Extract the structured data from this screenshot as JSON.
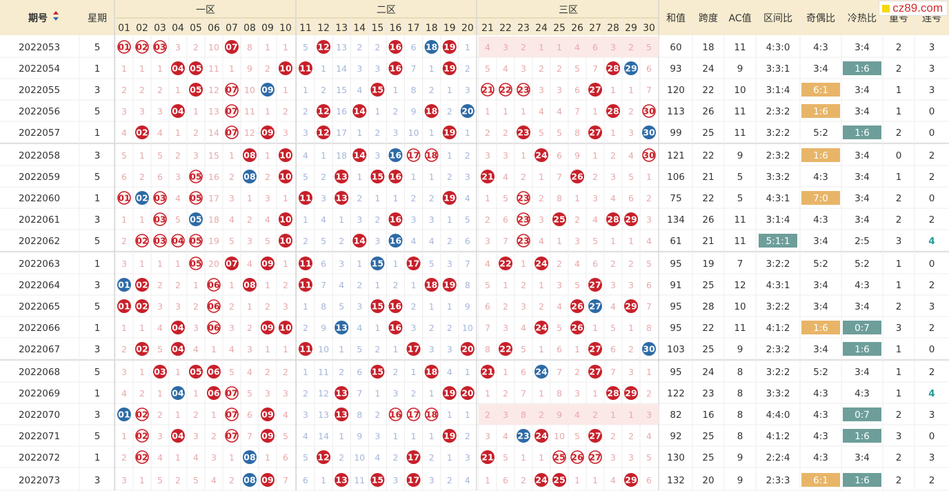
{
  "header": {
    "period": "期号",
    "weekday": "星期",
    "zones": [
      "一区",
      "二区",
      "三区"
    ],
    "stats": [
      "和值",
      "跨度",
      "AC值",
      "区间比",
      "奇偶比",
      "冷热比",
      "重号",
      "连号"
    ]
  },
  "watermark": "cz89.com",
  "colors": {
    "red": "#c8202a",
    "blue": "#2d6aa6",
    "header_bg": "#f7ecd0",
    "oddeven_bg": "#e8b568",
    "hotcold_bg": "#6d9e9a"
  },
  "chart_data": {
    "type": "table",
    "numbers": [
      "01",
      "02",
      "03",
      "04",
      "05",
      "06",
      "07",
      "08",
      "09",
      "10",
      "11",
      "12",
      "13",
      "14",
      "15",
      "16",
      "17",
      "18",
      "19",
      "20",
      "21",
      "22",
      "23",
      "24",
      "25",
      "26",
      "27",
      "28",
      "29",
      "30"
    ],
    "rows": [
      {
        "period": "2022053",
        "weekday": "5",
        "miss": [
          0,
          0,
          0,
          3,
          2,
          10,
          0,
          8,
          1,
          1,
          5,
          0,
          13,
          2,
          2,
          0,
          6,
          0,
          0,
          1,
          4,
          3,
          2,
          1,
          1,
          4,
          6,
          3,
          2,
          5
        ],
        "balls": {
          "1": "ro",
          "2": "ro",
          "3": "ro",
          "7": "r",
          "12": "r",
          "16": "r",
          "18": "b",
          "19": "r"
        },
        "sum": "60",
        "span": "18",
        "ac": "11",
        "zone_ratio": "4:3:0",
        "odd_even": "4:3",
        "hot_cold": "3:4",
        "repeat": "2",
        "consec": "3"
      },
      {
        "period": "2022054",
        "weekday": "1",
        "miss": [
          1,
          1,
          1,
          0,
          0,
          11,
          1,
          9,
          2,
          0,
          0,
          1,
          14,
          3,
          3,
          0,
          7,
          1,
          0,
          2,
          5,
          4,
          3,
          2,
          2,
          5,
          7,
          0,
          0,
          6
        ],
        "balls": {
          "4": "r",
          "5": "r",
          "10": "r",
          "11": "r",
          "16": "r",
          "19": "r",
          "28": "r",
          "29": "b"
        },
        "sum": "93",
        "span": "24",
        "ac": "9",
        "zone_ratio": "3:3:1",
        "odd_even": "3:4",
        "hot_cold": "1:6",
        "repeat": "2",
        "consec": "3"
      },
      {
        "period": "2022055",
        "weekday": "3",
        "miss": [
          2,
          2,
          2,
          1,
          0,
          12,
          0,
          10,
          0,
          1,
          1,
          2,
          15,
          4,
          0,
          1,
          8,
          2,
          1,
          3,
          0,
          0,
          0,
          3,
          3,
          6,
          0,
          1,
          1,
          7
        ],
        "balls": {
          "5": "r",
          "7": "ro",
          "9": "b",
          "15": "r",
          "21": "ro",
          "22": "ro",
          "23": "ro",
          "27": "r"
        },
        "sum": "120",
        "span": "22",
        "ac": "10",
        "zone_ratio": "3:1:4",
        "odd_even": "6:1",
        "hot_cold": "3:4",
        "repeat": "1",
        "consec": "3"
      },
      {
        "period": "2022056",
        "weekday": "5",
        "miss": [
          3,
          3,
          3,
          0,
          1,
          13,
          0,
          11,
          1,
          2,
          2,
          0,
          16,
          0,
          1,
          2,
          9,
          0,
          2,
          0,
          1,
          1,
          1,
          4,
          4,
          7,
          1,
          0,
          2,
          0
        ],
        "balls": {
          "4": "r",
          "7": "ro",
          "12": "r",
          "14": "r",
          "18": "r",
          "20": "b",
          "28": "r",
          "30": "ro"
        },
        "sum": "113",
        "span": "26",
        "ac": "11",
        "zone_ratio": "2:3:2",
        "odd_even": "1:6",
        "hot_cold": "3:4",
        "repeat": "1",
        "consec": "0"
      },
      {
        "period": "2022057",
        "weekday": "1",
        "miss": [
          4,
          0,
          4,
          1,
          2,
          14,
          0,
          12,
          0,
          3,
          3,
          0,
          17,
          1,
          2,
          3,
          10,
          1,
          0,
          1,
          2,
          2,
          0,
          5,
          5,
          8,
          0,
          1,
          3,
          0
        ],
        "balls": {
          "2": "r",
          "7": "ro",
          "9": "r",
          "12": "r",
          "19": "r",
          "23": "r",
          "27": "r",
          "30": "b"
        },
        "sum": "99",
        "span": "25",
        "ac": "11",
        "zone_ratio": "3:2:2",
        "odd_even": "5:2",
        "hot_cold": "1:6",
        "repeat": "2",
        "consec": "0"
      },
      {
        "period": "2022058",
        "weekday": "3",
        "miss": [
          5,
          1,
          5,
          2,
          3,
          15,
          1,
          0,
          1,
          0,
          4,
          1,
          18,
          0,
          3,
          0,
          0,
          0,
          1,
          2,
          3,
          3,
          1,
          0,
          6,
          9,
          1,
          2,
          4,
          0
        ],
        "balls": {
          "8": "r",
          "10": "r",
          "14": "r",
          "16": "b",
          "17": "ro",
          "18": "ro",
          "24": "r",
          "30": "ro"
        },
        "sum": "121",
        "span": "22",
        "ac": "9",
        "zone_ratio": "2:3:2",
        "odd_even": "1:6",
        "hot_cold": "3:4",
        "repeat": "0",
        "consec": "2"
      },
      {
        "period": "2022059",
        "weekday": "5",
        "miss": [
          6,
          2,
          6,
          3,
          0,
          16,
          2,
          0,
          2,
          0,
          5,
          2,
          0,
          1,
          0,
          0,
          1,
          1,
          2,
          3,
          0,
          4,
          2,
          1,
          7,
          0,
          2,
          3,
          5,
          1
        ],
        "balls": {
          "5": "ro",
          "8": "b",
          "10": "r",
          "13": "r",
          "15": "r",
          "16": "r",
          "21": "r",
          "26": "r"
        },
        "sum": "106",
        "span": "21",
        "ac": "5",
        "zone_ratio": "3:3:2",
        "odd_even": "4:3",
        "hot_cold": "3:4",
        "repeat": "1",
        "consec": "2"
      },
      {
        "period": "2022060",
        "weekday": "1",
        "miss": [
          0,
          0,
          0,
          4,
          0,
          17,
          3,
          1,
          3,
          1,
          0,
          3,
          0,
          2,
          1,
          1,
          2,
          2,
          0,
          4,
          1,
          5,
          0,
          2,
          8,
          1,
          3,
          4,
          6,
          2
        ],
        "balls": {
          "1": "ro",
          "2": "b",
          "3": "ro",
          "5": "ro",
          "11": "r",
          "13": "r",
          "19": "r",
          "23": "ro"
        },
        "sum": "75",
        "span": "22",
        "ac": "5",
        "zone_ratio": "4:3:1",
        "odd_even": "7:0",
        "hot_cold": "3:4",
        "repeat": "2",
        "consec": "0"
      },
      {
        "period": "2022061",
        "weekday": "3",
        "miss": [
          1,
          1,
          0,
          5,
          0,
          18,
          4,
          2,
          4,
          0,
          1,
          4,
          1,
          3,
          2,
          0,
          3,
          3,
          1,
          5,
          2,
          6,
          0,
          3,
          0,
          2,
          4,
          0,
          0,
          3
        ],
        "balls": {
          "3": "ro",
          "5": "b",
          "10": "r",
          "16": "r",
          "23": "ro",
          "25": "r",
          "28": "r",
          "29": "r"
        },
        "sum": "134",
        "span": "26",
        "ac": "11",
        "zone_ratio": "3:1:4",
        "odd_even": "4:3",
        "hot_cold": "3:4",
        "repeat": "2",
        "consec": "2"
      },
      {
        "period": "2022062",
        "weekday": "5",
        "miss": [
          2,
          0,
          0,
          0,
          0,
          19,
          5,
          3,
          5,
          0,
          2,
          5,
          2,
          0,
          3,
          0,
          4,
          4,
          2,
          6,
          3,
          7,
          0,
          4,
          1,
          3,
          5,
          1,
          1,
          4
        ],
        "balls": {
          "2": "ro",
          "3": "ro",
          "4": "ro",
          "5": "ro",
          "10": "r",
          "14": "r",
          "16": "b",
          "23": "ro"
        },
        "sum": "61",
        "span": "21",
        "ac": "11",
        "zone_ratio": "5:1:1",
        "odd_even": "3:4",
        "hot_cold": "2:5",
        "repeat": "3",
        "consec": "4"
      },
      {
        "period": "2022063",
        "weekday": "1",
        "miss": [
          3,
          1,
          1,
          1,
          0,
          20,
          0,
          4,
          0,
          1,
          0,
          6,
          3,
          1,
          0,
          1,
          0,
          5,
          3,
          7,
          4,
          0,
          1,
          0,
          2,
          4,
          6,
          2,
          2,
          5
        ],
        "balls": {
          "5": "ro",
          "7": "r",
          "9": "r",
          "11": "r",
          "15": "b",
          "17": "r",
          "22": "r",
          "24": "r"
        },
        "sum": "95",
        "span": "19",
        "ac": "7",
        "zone_ratio": "3:2:2",
        "odd_even": "5:2",
        "hot_cold": "5:2",
        "repeat": "1",
        "consec": "0"
      },
      {
        "period": "2022064",
        "weekday": "3",
        "miss": [
          0,
          0,
          2,
          2,
          1,
          0,
          1,
          0,
          1,
          2,
          0,
          7,
          4,
          2,
          1,
          2,
          1,
          0,
          0,
          8,
          5,
          1,
          2,
          1,
          3,
          5,
          0,
          3,
          3,
          6
        ],
        "balls": {
          "1": "b",
          "2": "r",
          "6": "ro",
          "8": "r",
          "11": "r",
          "18": "r",
          "19": "r",
          "27": "r"
        },
        "sum": "91",
        "span": "25",
        "ac": "12",
        "zone_ratio": "4:3:1",
        "odd_even": "3:4",
        "hot_cold": "4:3",
        "repeat": "1",
        "consec": "2"
      },
      {
        "period": "2022065",
        "weekday": "5",
        "miss": [
          0,
          0,
          3,
          3,
          2,
          0,
          2,
          1,
          2,
          3,
          1,
          8,
          5,
          3,
          0,
          0,
          2,
          1,
          1,
          9,
          6,
          2,
          3,
          2,
          4,
          0,
          0,
          4,
          0,
          7
        ],
        "balls": {
          "1": "r",
          "2": "r",
          "6": "ro",
          "15": "r",
          "16": "r",
          "26": "r",
          "27": "b",
          "29": "r"
        },
        "sum": "95",
        "span": "28",
        "ac": "10",
        "zone_ratio": "3:2:2",
        "odd_even": "3:4",
        "hot_cold": "3:4",
        "repeat": "2",
        "consec": "3"
      },
      {
        "period": "2022066",
        "weekday": "1",
        "miss": [
          1,
          1,
          4,
          0,
          3,
          0,
          3,
          2,
          0,
          0,
          2,
          9,
          0,
          4,
          1,
          0,
          3,
          2,
          2,
          10,
          7,
          3,
          4,
          0,
          5,
          0,
          1,
          5,
          1,
          8
        ],
        "balls": {
          "4": "r",
          "6": "ro",
          "9": "r",
          "10": "r",
          "13": "b",
          "16": "r",
          "24": "r",
          "26": "r"
        },
        "sum": "95",
        "span": "22",
        "ac": "11",
        "zone_ratio": "4:1:2",
        "odd_even": "1:6",
        "hot_cold": "0:7",
        "repeat": "3",
        "consec": "2"
      },
      {
        "period": "2022067",
        "weekday": "3",
        "miss": [
          2,
          0,
          5,
          0,
          4,
          1,
          4,
          3,
          1,
          1,
          0,
          10,
          1,
          5,
          2,
          1,
          0,
          3,
          3,
          0,
          8,
          0,
          5,
          1,
          6,
          1,
          0,
          6,
          2,
          0
        ],
        "balls": {
          "2": "r",
          "4": "r",
          "11": "r",
          "17": "r",
          "20": "r",
          "22": "r",
          "27": "r",
          "30": "b"
        },
        "sum": "103",
        "span": "25",
        "ac": "9",
        "zone_ratio": "2:3:2",
        "odd_even": "3:4",
        "hot_cold": "1:6",
        "repeat": "1",
        "consec": "0"
      },
      {
        "period": "2022068",
        "weekday": "5",
        "miss": [
          3,
          1,
          0,
          1,
          0,
          0,
          5,
          4,
          2,
          2,
          1,
          11,
          2,
          6,
          0,
          2,
          1,
          0,
          4,
          1,
          0,
          1,
          6,
          0,
          7,
          2,
          0,
          7,
          3,
          1
        ],
        "balls": {
          "3": "r",
          "5": "r",
          "6": "r",
          "15": "r",
          "18": "r",
          "21": "r",
          "24": "b",
          "27": "r"
        },
        "sum": "95",
        "span": "24",
        "ac": "8",
        "zone_ratio": "3:2:2",
        "odd_even": "5:2",
        "hot_cold": "3:4",
        "repeat": "1",
        "consec": "2"
      },
      {
        "period": "2022069",
        "weekday": "1",
        "miss": [
          4,
          2,
          1,
          0,
          1,
          0,
          0,
          5,
          3,
          3,
          2,
          12,
          0,
          7,
          1,
          3,
          2,
          1,
          0,
          0,
          1,
          2,
          7,
          1,
          8,
          3,
          1,
          0,
          0,
          2
        ],
        "balls": {
          "4": "b",
          "6": "r",
          "7": "ro",
          "13": "r",
          "19": "r",
          "20": "r",
          "28": "r",
          "29": "r"
        },
        "sum": "122",
        "span": "23",
        "ac": "8",
        "zone_ratio": "3:3:2",
        "odd_even": "4:3",
        "hot_cold": "4:3",
        "repeat": "1",
        "consec": "4"
      },
      {
        "period": "2022070",
        "weekday": "3",
        "miss": [
          0,
          0,
          2,
          1,
          2,
          1,
          0,
          6,
          0,
          4,
          3,
          13,
          0,
          8,
          2,
          0,
          0,
          0,
          1,
          1,
          2,
          3,
          8,
          2,
          9,
          4,
          2,
          1,
          1,
          3
        ],
        "balls": {
          "1": "b",
          "2": "ro",
          "7": "ro",
          "9": "r",
          "13": "r",
          "16": "ro",
          "17": "ro",
          "18": "ro"
        },
        "sum": "82",
        "span": "16",
        "ac": "8",
        "zone_ratio": "4:4:0",
        "odd_even": "4:3",
        "hot_cold": "0:7",
        "repeat": "2",
        "consec": "3"
      },
      {
        "period": "2022071",
        "weekday": "5",
        "miss": [
          1,
          0,
          3,
          0,
          3,
          2,
          0,
          7,
          0,
          5,
          4,
          14,
          1,
          9,
          3,
          1,
          1,
          1,
          0,
          2,
          3,
          4,
          0,
          0,
          10,
          5,
          0,
          2,
          2,
          4
        ],
        "balls": {
          "2": "ro",
          "4": "r",
          "7": "ro",
          "9": "r",
          "19": "r",
          "23": "b",
          "24": "r",
          "27": "r"
        },
        "sum": "92",
        "span": "25",
        "ac": "8",
        "zone_ratio": "4:1:2",
        "odd_even": "4:3",
        "hot_cold": "1:6",
        "repeat": "3",
        "consec": "0"
      },
      {
        "period": "2022072",
        "weekday": "1",
        "miss": [
          2,
          0,
          4,
          1,
          4,
          3,
          1,
          0,
          1,
          6,
          5,
          0,
          2,
          10,
          4,
          2,
          0,
          2,
          1,
          3,
          0,
          5,
          1,
          1,
          0,
          0,
          0,
          3,
          3,
          5
        ],
        "balls": {
          "2": "ro",
          "8": "b",
          "12": "r",
          "17": "r",
          "21": "r",
          "25": "ro",
          "26": "ro",
          "27": "ro"
        },
        "sum": "130",
        "span": "25",
        "ac": "9",
        "zone_ratio": "2:2:4",
        "odd_even": "4:3",
        "hot_cold": "3:4",
        "repeat": "2",
        "consec": "3"
      },
      {
        "period": "2022073",
        "weekday": "3",
        "miss": [
          3,
          1,
          5,
          2,
          5,
          4,
          2,
          0,
          0,
          7,
          6,
          1,
          0,
          11,
          0,
          3,
          0,
          3,
          2,
          4,
          1,
          6,
          2,
          0,
          0,
          1,
          1,
          4,
          0,
          6
        ],
        "balls": {
          "8": "b",
          "9": "r",
          "13": "r",
          "15": "r",
          "17": "r",
          "24": "r",
          "25": "r",
          "29": "r"
        },
        "sum": "132",
        "span": "20",
        "ac": "9",
        "zone_ratio": "2:3:3",
        "odd_even": "6:1",
        "hot_cold": "1:6",
        "repeat": "2",
        "consec": "2"
      }
    ],
    "highlights": {
      "odd_even": [
        "2022055",
        "2022056",
        "2022058",
        "2022060",
        "2022066",
        "2022073"
      ],
      "hot_cold": [
        "2022054",
        "2022057",
        "2022066",
        "2022067",
        "2022070",
        "2022071",
        "2022073"
      ],
      "zone_ratio": [
        "2022062"
      ],
      "consec_blue": [
        "2022062",
        "2022069"
      ]
    }
  }
}
